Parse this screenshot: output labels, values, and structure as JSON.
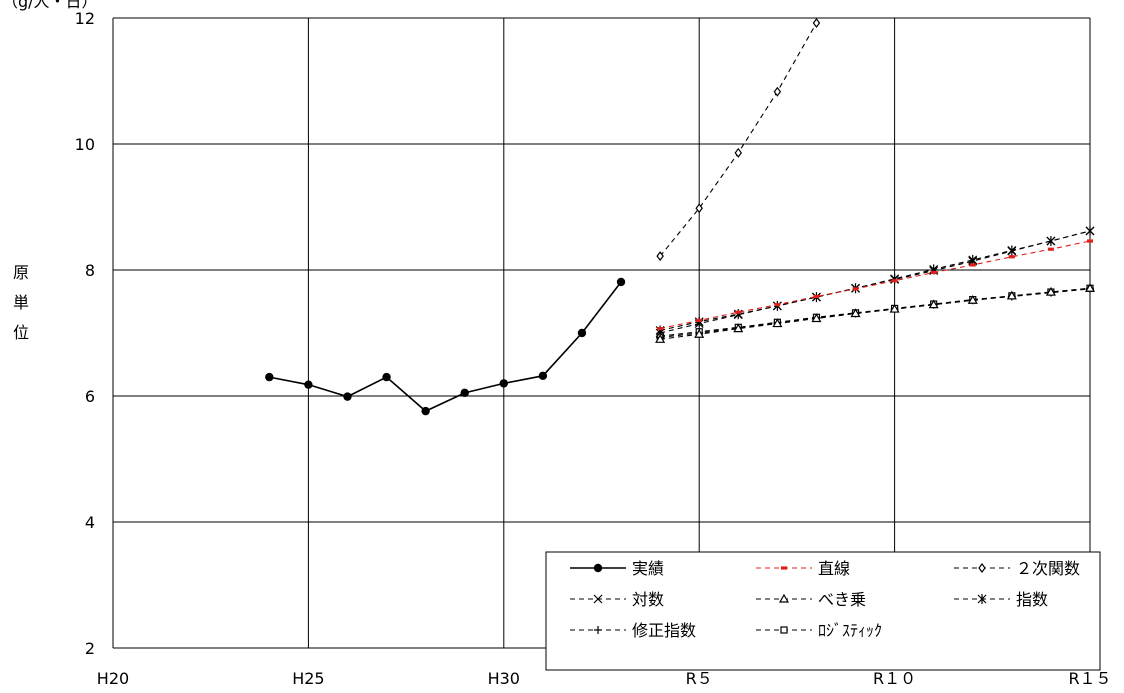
{
  "chart_data": {
    "type": "line",
    "y_unit_label": "（g/人・日）",
    "ylabel": "原単位",
    "xlabel": "",
    "ylim": [
      2,
      12
    ],
    "yticks": [
      2,
      4,
      6,
      8,
      10,
      12
    ],
    "xlim": [
      2008,
      2033
    ],
    "xticks": [
      {
        "value": 2008,
        "label": "H20"
      },
      {
        "value": 2013,
        "label": "H25"
      },
      {
        "value": 2018,
        "label": "H30"
      },
      {
        "value": 2023,
        "label": "R５"
      },
      {
        "value": 2028,
        "label": "R１０"
      },
      {
        "value": 2033,
        "label": "R１５"
      }
    ],
    "grid": true,
    "legend_position": "bottom-right",
    "series": [
      {
        "name": "実績",
        "key": "actual",
        "color": "#000000",
        "dash": "solid",
        "marker": "dot",
        "x": [
          2012,
          2013,
          2014,
          2015,
          2016,
          2017,
          2018,
          2019,
          2020,
          2021
        ],
        "y": [
          6.3,
          6.18,
          5.99,
          6.3,
          5.76,
          6.05,
          6.2,
          6.32,
          7.0,
          7.81
        ]
      },
      {
        "name": "直線",
        "key": "linear",
        "color": "#e0201b",
        "dash": "dashed",
        "marker": "dash",
        "x": [
          2022,
          2023,
          2024,
          2025,
          2026,
          2027,
          2028,
          2029,
          2030,
          2031,
          2032,
          2033
        ],
        "y": [
          7.07,
          7.2,
          7.33,
          7.45,
          7.58,
          7.7,
          7.83,
          7.96,
          8.08,
          8.21,
          8.33,
          8.46
        ]
      },
      {
        "name": "２次関数",
        "key": "quadratic",
        "color": "#000000",
        "dash": "dashed",
        "marker": "diamond",
        "x": [
          2022,
          2023,
          2024,
          2025,
          2026
        ],
        "y": [
          8.22,
          8.98,
          9.86,
          10.83,
          11.92
        ]
      },
      {
        "name": "対数",
        "key": "log",
        "color": "#000000",
        "dash": "dashed",
        "marker": "x",
        "x": [
          2022,
          2023,
          2024,
          2025,
          2026,
          2027,
          2028,
          2029,
          2030,
          2031,
          2032,
          2033
        ],
        "y": [
          7.0,
          7.15,
          7.29,
          7.43,
          7.57,
          7.71,
          7.85,
          7.99,
          8.14,
          8.3,
          8.46,
          8.62
        ]
      },
      {
        "name": "べき乗",
        "key": "power",
        "color": "#000000",
        "dash": "dashed",
        "marker": "triangle",
        "x": [
          2022,
          2023,
          2024,
          2025,
          2026,
          2027,
          2028,
          2029,
          2030,
          2031,
          2032,
          2033
        ],
        "y": [
          6.9,
          6.98,
          7.07,
          7.15,
          7.23,
          7.31,
          7.38,
          7.45,
          7.52,
          7.59,
          7.65,
          7.71
        ]
      },
      {
        "name": "指数",
        "key": "exponential",
        "color": "#000000",
        "dash": "dashed",
        "marker": "asterisk",
        "x": [
          2022,
          2023,
          2024,
          2025,
          2026,
          2027,
          2028,
          2029,
          2030,
          2031,
          2032,
          2033
        ],
        "y": [
          7.04,
          7.18,
          7.3,
          7.43,
          7.57,
          7.71,
          7.86,
          8.01,
          8.16,
          8.31,
          8.46,
          8.62
        ]
      },
      {
        "name": "修正指数",
        "key": "modified_exp",
        "color": "#000000",
        "dash": "dashed",
        "marker": "plus",
        "x": [
          2022,
          2023,
          2024,
          2025,
          2026,
          2027,
          2028,
          2029,
          2030,
          2031,
          2032,
          2033
        ],
        "y": [
          6.93,
          7.0,
          7.08,
          7.16,
          7.24,
          7.31,
          7.38,
          7.45,
          7.52,
          7.58,
          7.64,
          7.7
        ]
      },
      {
        "name": "ﾛｼﾞｽﾃｨｯｸ",
        "key": "logistic",
        "color": "#000000",
        "dash": "dashed",
        "marker": "square",
        "x": [
          2022,
          2023,
          2024,
          2025,
          2026,
          2027,
          2028,
          2029,
          2030,
          2031,
          2032,
          2033
        ],
        "y": [
          6.95,
          7.02,
          7.09,
          7.17,
          7.25,
          7.32,
          7.39,
          7.46,
          7.53,
          7.59,
          7.65,
          7.71
        ]
      }
    ]
  }
}
